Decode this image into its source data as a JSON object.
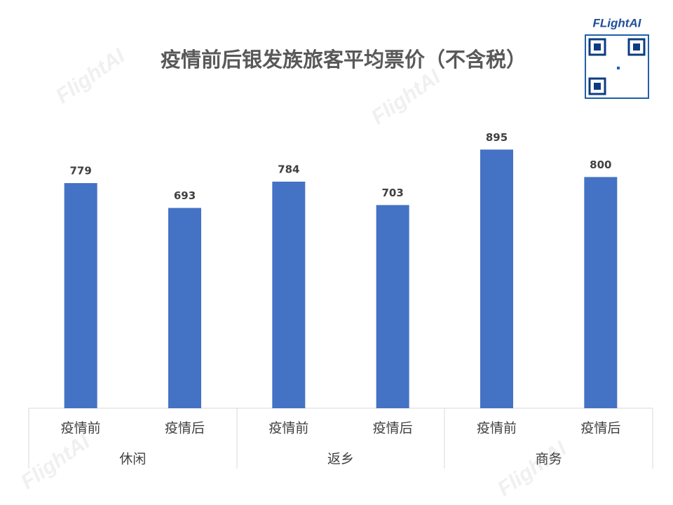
{
  "chart_data": {
    "type": "bar",
    "title": "疫情前后银发族旅客平均票价（不含税）",
    "categories": [
      "疫情前",
      "疫情后",
      "疫情前",
      "疫情后",
      "疫情前",
      "疫情后"
    ],
    "groups": [
      "休闲",
      "返乡",
      "商务"
    ],
    "values": [
      779,
      693,
      784,
      703,
      895,
      800
    ],
    "color": "#4472c4",
    "ylim": [
      0,
      1000
    ],
    "logo": "FLightAI",
    "watermark": "FlightAI"
  }
}
